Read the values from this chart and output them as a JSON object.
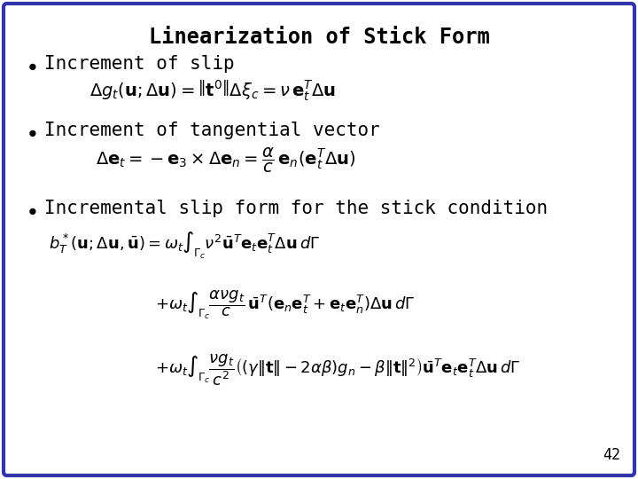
{
  "title": "Linearization of Stick Form",
  "background_color": "#ffffff",
  "border_color": "#3333aa",
  "border_linewidth": 3,
  "title_fontsize": 17,
  "bullet_fontsize": 15,
  "eq_fontsize": 13,
  "page_number": "42",
  "bullets": [
    "Increment of slip",
    "Increment of tangential vector",
    "Incremental slip form for the stick condition"
  ]
}
